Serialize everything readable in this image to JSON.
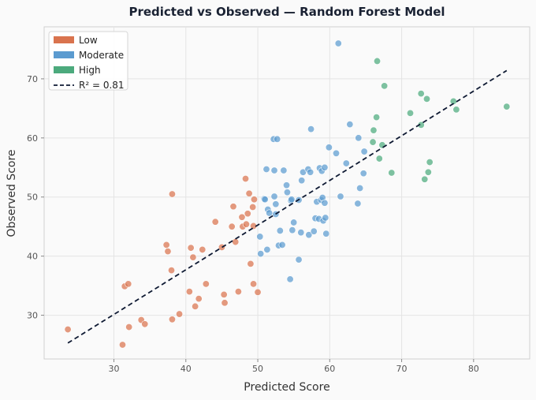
{
  "chart_data": {
    "type": "scatter",
    "title": "Predicted vs Observed — Random Forest Model",
    "xlabel": "Predicted Score",
    "ylabel": "Observed Score",
    "xlim": [
      20.3,
      87.8
    ],
    "ylim": [
      22.6,
      78.8
    ],
    "xticks": [
      30,
      40,
      50,
      60,
      70,
      80
    ],
    "yticks": [
      30,
      40,
      50,
      60,
      70
    ],
    "grid": true,
    "legend_position": "top-left",
    "series": [
      {
        "name": "Low",
        "color": "#d9734e",
        "points": [
          [
            23.6,
            27.6
          ],
          [
            31.2,
            25.0
          ],
          [
            31.5,
            34.9
          ],
          [
            32.0,
            35.3
          ],
          [
            32.1,
            28.0
          ],
          [
            33.8,
            29.2
          ],
          [
            34.3,
            28.5
          ],
          [
            37.3,
            41.9
          ],
          [
            37.5,
            40.8
          ],
          [
            38.0,
            37.6
          ],
          [
            38.1,
            29.3
          ],
          [
            38.1,
            50.5
          ],
          [
            39.1,
            30.2
          ],
          [
            40.5,
            34.0
          ],
          [
            40.7,
            41.4
          ],
          [
            41.0,
            39.8
          ],
          [
            41.3,
            31.5
          ],
          [
            41.8,
            32.8
          ],
          [
            42.3,
            41.1
          ],
          [
            42.8,
            35.3
          ],
          [
            44.1,
            45.8
          ],
          [
            45.0,
            41.5
          ],
          [
            45.3,
            33.5
          ],
          [
            45.4,
            32.1
          ],
          [
            46.4,
            45.0
          ],
          [
            46.6,
            48.4
          ],
          [
            46.9,
            42.4
          ],
          [
            47.3,
            34.0
          ],
          [
            47.8,
            46.6
          ],
          [
            47.9,
            45.0
          ],
          [
            48.3,
            53.1
          ],
          [
            48.4,
            45.4
          ],
          [
            48.6,
            47.2
          ],
          [
            48.8,
            50.6
          ],
          [
            49.0,
            38.7
          ],
          [
            49.3,
            48.3
          ],
          [
            49.4,
            45.1
          ],
          [
            49.5,
            49.6
          ],
          [
            49.4,
            35.3
          ],
          [
            50.0,
            33.9
          ]
        ]
      },
      {
        "name": "Moderate",
        "color": "#5b9bd0",
        "points": [
          [
            50.3,
            43.3
          ],
          [
            50.4,
            40.4
          ],
          [
            50.9,
            49.7
          ],
          [
            51.0,
            49.6
          ],
          [
            51.2,
            54.7
          ],
          [
            51.3,
            41.1
          ],
          [
            51.4,
            47.9
          ],
          [
            51.6,
            47.3
          ],
          [
            52.2,
            59.8
          ],
          [
            52.3,
            50.1
          ],
          [
            52.3,
            54.5
          ],
          [
            52.5,
            48.8
          ],
          [
            52.5,
            47.1
          ],
          [
            52.7,
            59.8
          ],
          [
            52.9,
            41.8
          ],
          [
            53.1,
            44.3
          ],
          [
            53.4,
            41.9
          ],
          [
            53.6,
            54.5
          ],
          [
            54.0,
            52.0
          ],
          [
            54.1,
            50.8
          ],
          [
            54.5,
            36.1
          ],
          [
            54.6,
            49.4
          ],
          [
            54.7,
            49.6
          ],
          [
            54.8,
            44.4
          ],
          [
            55.0,
            45.7
          ],
          [
            55.7,
            39.4
          ],
          [
            55.7,
            49.5
          ],
          [
            56.0,
            44.0
          ],
          [
            56.1,
            52.8
          ],
          [
            56.3,
            54.2
          ],
          [
            57.0,
            54.7
          ],
          [
            57.1,
            43.6
          ],
          [
            57.3,
            54.2
          ],
          [
            57.4,
            61.5
          ],
          [
            57.8,
            44.2
          ],
          [
            58.0,
            46.4
          ],
          [
            58.2,
            49.2
          ],
          [
            58.5,
            46.3
          ],
          [
            58.6,
            54.9
          ],
          [
            58.8,
            49.5
          ],
          [
            58.9,
            54.4
          ],
          [
            59.0,
            49.9
          ],
          [
            59.1,
            46.0
          ],
          [
            59.3,
            55.0
          ],
          [
            59.3,
            49.0
          ],
          [
            59.4,
            46.5
          ],
          [
            59.5,
            43.8
          ],
          [
            59.9,
            58.4
          ],
          [
            60.9,
            57.4
          ],
          [
            61.2,
            76.0
          ],
          [
            61.5,
            50.1
          ],
          [
            62.3,
            55.7
          ],
          [
            62.8,
            62.3
          ],
          [
            63.9,
            48.9
          ],
          [
            64.0,
            60.0
          ],
          [
            64.2,
            51.5
          ],
          [
            64.7,
            54.0
          ],
          [
            64.8,
            57.7
          ]
        ]
      },
      {
        "name": "High",
        "color": "#4caa7d",
        "points": [
          [
            66.0,
            59.3
          ],
          [
            66.1,
            61.3
          ],
          [
            66.5,
            63.5
          ],
          [
            66.6,
            73.0
          ],
          [
            66.9,
            56.5
          ],
          [
            67.3,
            58.8
          ],
          [
            67.6,
            68.8
          ],
          [
            68.6,
            54.1
          ],
          [
            71.2,
            64.2
          ],
          [
            72.7,
            62.2
          ],
          [
            72.7,
            67.5
          ],
          [
            73.2,
            53.0
          ],
          [
            73.5,
            66.6
          ],
          [
            73.7,
            54.2
          ],
          [
            73.9,
            55.9
          ],
          [
            77.2,
            66.2
          ],
          [
            77.6,
            64.8
          ],
          [
            84.6,
            65.3
          ]
        ]
      }
    ],
    "fit_line": {
      "label": "R² = 0.81",
      "x": [
        23.6,
        84.6
      ],
      "y": [
        25.3,
        71.4
      ],
      "style": "dashed",
      "color": "#0f1a33"
    }
  }
}
